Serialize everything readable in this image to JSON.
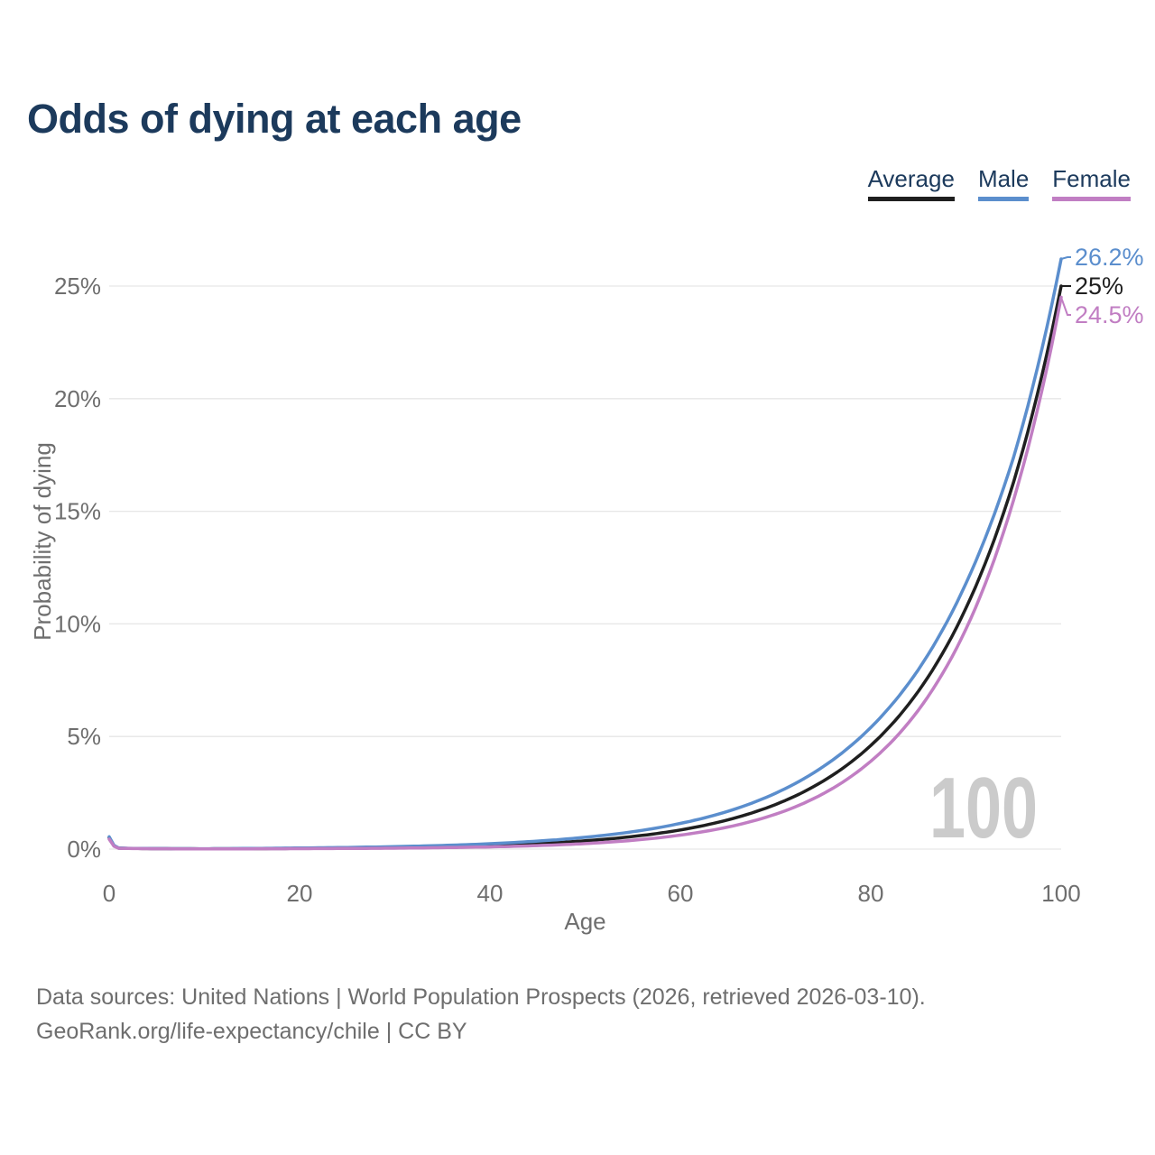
{
  "page": {
    "title": "Odds of dying at each age"
  },
  "legend": {
    "items": [
      {
        "label": "Average",
        "color": "#1f1f1f"
      },
      {
        "label": "Male",
        "color": "#5b8ecd"
      },
      {
        "label": "Female",
        "color": "#c17ec3"
      }
    ]
  },
  "chart_data": {
    "type": "line",
    "title": "Odds of dying at each age",
    "xlabel": "Age",
    "ylabel": "Probability of dying",
    "units": "percent probability of dying",
    "xlim": [
      0,
      100
    ],
    "ylim": [
      0,
      26.5
    ],
    "x_ticks": [
      0,
      20,
      40,
      60,
      80,
      100
    ],
    "y_tick_values": [
      0,
      5,
      10,
      15,
      20,
      25
    ],
    "y_tick_labels": [
      "0%",
      "5%",
      "10%",
      "15%",
      "20%",
      "25%"
    ],
    "grid": "horizontal-only",
    "legend_position": "top-right",
    "watermark": "100",
    "x": [
      0,
      1,
      2,
      5,
      10,
      15,
      20,
      25,
      30,
      35,
      40,
      45,
      50,
      55,
      60,
      65,
      70,
      75,
      80,
      85,
      90,
      95,
      100
    ],
    "series": [
      {
        "name": "Average",
        "color": "#1f1f1f",
        "end_label": "25%",
        "values": [
          0.5,
          0.045,
          0.032,
          0.02,
          0.013,
          0.019,
          0.029,
          0.044,
          0.068,
          0.104,
          0.158,
          0.24,
          0.37,
          0.56,
          0.85,
          1.3,
          1.98,
          3.02,
          4.6,
          7.01,
          10.7,
          16.3,
          25.0
        ]
      },
      {
        "name": "Male",
        "color": "#5b8ecd",
        "end_label": "26.2%",
        "values": [
          0.55,
          0.05,
          0.036,
          0.024,
          0.016,
          0.03,
          0.05,
          0.074,
          0.11,
          0.162,
          0.24,
          0.355,
          0.523,
          0.772,
          1.14,
          1.68,
          2.48,
          3.66,
          5.4,
          7.97,
          11.8,
          17.4,
          26.2
        ]
      },
      {
        "name": "Female",
        "color": "#c17ec3",
        "end_label": "24.5%",
        "values": [
          0.44,
          0.038,
          0.027,
          0.016,
          0.011,
          0.014,
          0.02,
          0.029,
          0.042,
          0.064,
          0.098,
          0.155,
          0.245,
          0.39,
          0.62,
          0.98,
          1.55,
          2.46,
          3.9,
          6.17,
          9.77,
          15.5,
          24.5
        ]
      }
    ]
  },
  "colors": {
    "title_navy": "#1c3a5c",
    "axis_text_gray": "#6e6e6e",
    "gridline_gray": "#e6e6e6",
    "watermark_gray": "#cbcbcb",
    "male_blue": "#5b8ecd",
    "female_purple": "#c17ec3",
    "average_black": "#1f1f1f"
  },
  "source": {
    "line1": "Data sources: United Nations | World Population Prospects (2026, retrieved 2026-03-10).",
    "line2": "GeoRank.org/life-expectancy/chile | CC BY"
  }
}
